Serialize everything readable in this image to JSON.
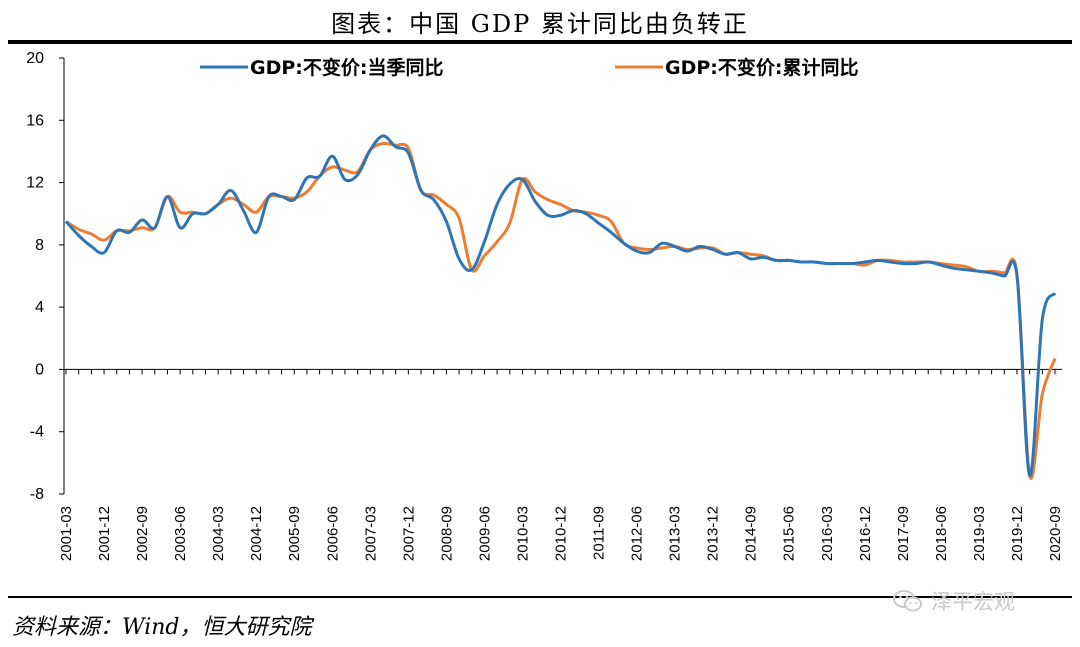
{
  "title": "图表：中国 GDP 累计同比由负转正",
  "source": "资料来源：Wind，恒大研究院",
  "watermark": {
    "text": "泽平宏观",
    "icon": "wechat-icon"
  },
  "chart_data": {
    "type": "line",
    "title": "图表：中国 GDP 累计同比由负转正",
    "xlabel": "",
    "ylabel": "",
    "ylim": [
      -8,
      20
    ],
    "yticks": [
      -8,
      -4,
      0,
      4,
      8,
      12,
      16,
      20
    ],
    "grid": false,
    "legend_position": "top",
    "x_tick_labels": [
      "2001-03",
      "2001-12",
      "2002-09",
      "2003-06",
      "2004-03",
      "2004-12",
      "2005-09",
      "2006-06",
      "2007-03",
      "2007-12",
      "2008-09",
      "2009-06",
      "2010-03",
      "2010-12",
      "2011-09",
      "2012-06",
      "2013-03",
      "2013-12",
      "2014-09",
      "2015-06",
      "2016-03",
      "2016-12",
      "2017-09",
      "2018-06",
      "2019-03",
      "2019-12",
      "2020-09"
    ],
    "series": [
      {
        "name": "GDP:不变价:当季同比",
        "color": "#2e75b6",
        "x": [
          "2001-03",
          "2001-06",
          "2001-09",
          "2001-12",
          "2002-03",
          "2002-06",
          "2002-09",
          "2002-12",
          "2003-03",
          "2003-06",
          "2003-09",
          "2003-12",
          "2004-03",
          "2004-06",
          "2004-09",
          "2004-12",
          "2005-03",
          "2005-06",
          "2005-09",
          "2005-12",
          "2006-03",
          "2006-06",
          "2006-09",
          "2006-12",
          "2007-03",
          "2007-06",
          "2007-09",
          "2007-12",
          "2008-03",
          "2008-06",
          "2008-09",
          "2008-12",
          "2009-03",
          "2009-06",
          "2009-09",
          "2009-12",
          "2010-03",
          "2010-06",
          "2010-09",
          "2010-12",
          "2011-03",
          "2011-06",
          "2011-09",
          "2011-12",
          "2012-03",
          "2012-06",
          "2012-09",
          "2012-12",
          "2013-03",
          "2013-06",
          "2013-09",
          "2013-12",
          "2014-03",
          "2014-06",
          "2014-09",
          "2014-12",
          "2015-03",
          "2015-06",
          "2015-09",
          "2015-12",
          "2016-03",
          "2016-06",
          "2016-09",
          "2016-12",
          "2017-03",
          "2017-06",
          "2017-09",
          "2017-12",
          "2018-03",
          "2018-06",
          "2018-09",
          "2018-12",
          "2019-03",
          "2019-06",
          "2019-09",
          "2019-12",
          "2020-03",
          "2020-06",
          "2020-09"
        ],
        "values": [
          9.5,
          8.6,
          7.9,
          7.5,
          8.9,
          8.8,
          9.6,
          9.1,
          11.1,
          9.1,
          10.0,
          10.0,
          10.6,
          11.5,
          10.2,
          8.8,
          11.1,
          11.1,
          10.9,
          12.3,
          12.4,
          13.7,
          12.2,
          12.5,
          14.1,
          15.0,
          14.3,
          13.9,
          11.5,
          10.9,
          9.5,
          7.1,
          6.4,
          8.2,
          10.6,
          11.9,
          12.2,
          10.8,
          9.9,
          9.9,
          10.2,
          10.0,
          9.4,
          8.8,
          8.1,
          7.6,
          7.5,
          8.1,
          7.9,
          7.6,
          7.9,
          7.7,
          7.4,
          7.5,
          7.1,
          7.2,
          7.0,
          7.0,
          6.9,
          6.9,
          6.8,
          6.8,
          6.8,
          6.9,
          7.0,
          6.9,
          6.8,
          6.8,
          6.9,
          6.7,
          6.5,
          6.4,
          6.3,
          6.2,
          6.0,
          6.0,
          -6.8,
          3.2,
          4.9
        ]
      },
      {
        "name": "GDP:不变价:累计同比",
        "color": "#ed7d31",
        "x": [
          "2001-03",
          "2001-06",
          "2001-09",
          "2001-12",
          "2002-03",
          "2002-06",
          "2002-09",
          "2002-12",
          "2003-03",
          "2003-06",
          "2003-09",
          "2003-12",
          "2004-03",
          "2004-06",
          "2004-09",
          "2004-12",
          "2005-03",
          "2005-06",
          "2005-09",
          "2005-12",
          "2006-03",
          "2006-06",
          "2006-09",
          "2006-12",
          "2007-03",
          "2007-06",
          "2007-09",
          "2007-12",
          "2008-03",
          "2008-06",
          "2008-09",
          "2008-12",
          "2009-03",
          "2009-06",
          "2009-09",
          "2009-12",
          "2010-03",
          "2010-06",
          "2010-09",
          "2010-12",
          "2011-03",
          "2011-06",
          "2011-09",
          "2011-12",
          "2012-03",
          "2012-06",
          "2012-09",
          "2012-12",
          "2013-03",
          "2013-06",
          "2013-09",
          "2013-12",
          "2014-03",
          "2014-06",
          "2014-09",
          "2014-12",
          "2015-03",
          "2015-06",
          "2015-09",
          "2015-12",
          "2016-03",
          "2016-06",
          "2016-09",
          "2016-12",
          "2017-03",
          "2017-06",
          "2017-09",
          "2017-12",
          "2018-03",
          "2018-06",
          "2018-09",
          "2018-12",
          "2019-03",
          "2019-06",
          "2019-09",
          "2019-12",
          "2020-03",
          "2020-06",
          "2020-09"
        ],
        "values": [
          9.5,
          9.0,
          8.7,
          8.3,
          8.9,
          8.9,
          9.1,
          9.1,
          11.1,
          10.1,
          10.1,
          10.0,
          10.6,
          11.0,
          10.6,
          10.1,
          11.1,
          11.1,
          11.0,
          11.4,
          12.4,
          13.0,
          12.8,
          12.7,
          14.1,
          14.5,
          14.4,
          14.2,
          11.5,
          11.2,
          10.6,
          9.7,
          6.4,
          7.3,
          8.2,
          9.4,
          12.2,
          11.4,
          10.9,
          10.6,
          10.2,
          10.1,
          9.9,
          9.5,
          8.1,
          7.8,
          7.7,
          7.8,
          7.9,
          7.7,
          7.8,
          7.8,
          7.4,
          7.5,
          7.4,
          7.3,
          7.0,
          7.0,
          6.9,
          6.9,
          6.8,
          6.8,
          6.8,
          6.7,
          7.0,
          7.0,
          6.9,
          6.9,
          6.9,
          6.8,
          6.7,
          6.6,
          6.3,
          6.3,
          6.2,
          6.1,
          -6.8,
          -1.6,
          0.7
        ]
      }
    ]
  }
}
